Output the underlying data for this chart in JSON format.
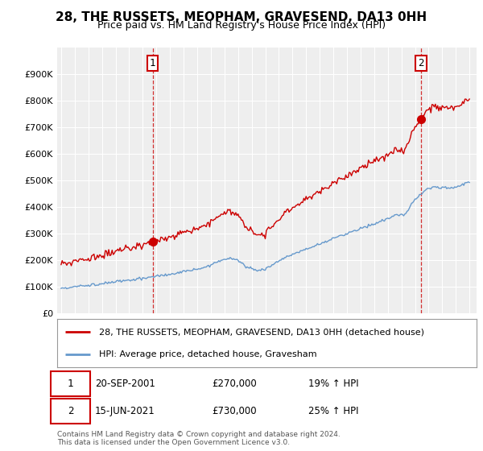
{
  "title": "28, THE RUSSETS, MEOPHAM, GRAVESEND, DA13 0HH",
  "subtitle": "Price paid vs. HM Land Registry's House Price Index (HPI)",
  "background_color": "#ffffff",
  "plot_bg_color": "#eeeeee",
  "grid_color": "#ffffff",
  "hpi_line_color": "#6699cc",
  "price_line_color": "#cc0000",
  "ylim": [
    0,
    1000000
  ],
  "yticks": [
    0,
    100000,
    200000,
    300000,
    400000,
    500000,
    600000,
    700000,
    800000,
    900000
  ],
  "ytick_labels": [
    "£0",
    "£100K",
    "£200K",
    "£300K",
    "£400K",
    "£500K",
    "£600K",
    "£700K",
    "£800K",
    "£900K"
  ],
  "sale1_year": 2001.72,
  "sale1_price": 270000,
  "sale2_year": 2021.45,
  "sale2_price": 730000,
  "legend_price_label": "28, THE RUSSETS, MEOPHAM, GRAVESEND, DA13 0HH (detached house)",
  "legend_hpi_label": "HPI: Average price, detached house, Gravesham",
  "note1_date": "20-SEP-2001",
  "note1_price": "£270,000",
  "note1_hpi": "19% ↑ HPI",
  "note2_date": "15-JUN-2021",
  "note2_price": "£730,000",
  "note2_hpi": "25% ↑ HPI",
  "footer": "Contains HM Land Registry data © Crown copyright and database right 2024.\nThis data is licensed under the Open Government Licence v3.0.",
  "xmin": 1994.7,
  "xmax": 2025.5
}
